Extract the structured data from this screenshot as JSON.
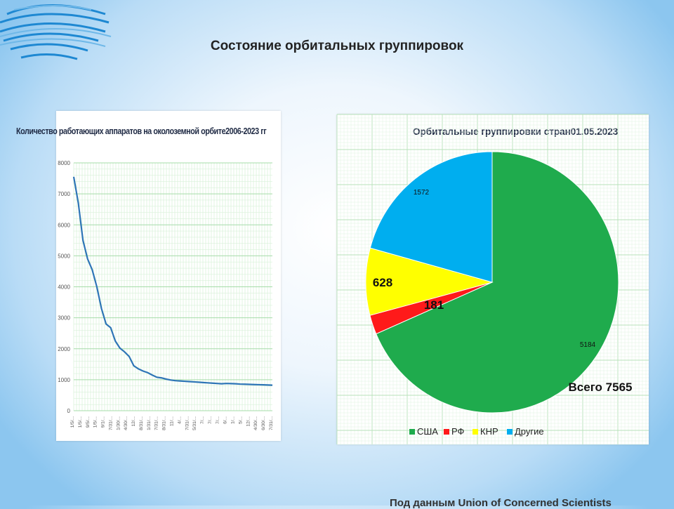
{
  "slide": {
    "title": "Состояние орбитальных группировок",
    "footer": "Под данным Union of Concerned Scientists"
  },
  "chart_data": [
    {
      "type": "line",
      "title": "Количество работающих аппаратов на околоземной орбите2006-2023 гг",
      "ylim": [
        0,
        8000
      ],
      "yticks": [
        0,
        1000,
        2000,
        3000,
        4000,
        5000,
        6000,
        7000,
        8000
      ],
      "xticklabels": [
        "1/5/...",
        "1/5/...",
        "9/5/...",
        "1/5/...",
        "9/1/...",
        "7/31/...",
        "1/30/...",
        "4/30/...",
        "12/...",
        "8/31/...",
        "1/31/...",
        "7/31/...",
        "8/31/...",
        "11/...",
        "4/...",
        "7/31/...",
        "5/31/...",
        "7/...",
        "7/...",
        "7/...",
        "6/...",
        "1/...",
        "5/...",
        "12/...",
        "4/30/...",
        "6/30/...",
        "7/31/..."
      ],
      "grid": true,
      "color": "#2e75b6",
      "values": [
        7550,
        6700,
        5500,
        4900,
        4550,
        4000,
        3300,
        2800,
        2680,
        2250,
        2020,
        1900,
        1750,
        1450,
        1350,
        1280,
        1230,
        1150,
        1080,
        1060,
        1020,
        990,
        970,
        960,
        950,
        940,
        930,
        920,
        910,
        900,
        890,
        880,
        870,
        880,
        875,
        870,
        860,
        855,
        850,
        845,
        840,
        835,
        830,
        825
      ]
    },
    {
      "type": "pie",
      "title": "Орбитальные группировки стран01.05.2023",
      "categories": [
        "США",
        "РФ",
        "КНР",
        "Другие"
      ],
      "values": [
        5184,
        181,
        628,
        1572
      ],
      "colors": [
        "#1fab4d",
        "#ff1a1a",
        "#ffff00",
        "#00aeef"
      ],
      "data_labels": [
        "5184",
        "181",
        "628",
        "1572"
      ],
      "total_label": "Всего  7565",
      "legend_position": "bottom",
      "grid": true
    }
  ]
}
